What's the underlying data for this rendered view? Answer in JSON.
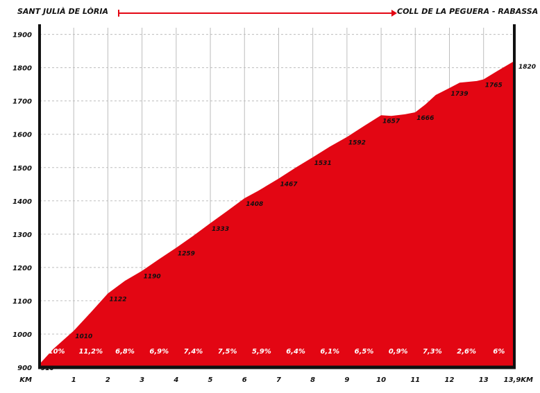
{
  "route": {
    "start": "SANT JULIÀ DE LÒRIA",
    "end": "COLL DE LA PEGUERA - RABASSA"
  },
  "colors": {
    "fill": "#e30613",
    "axis": "#111111",
    "grid": "#bdbdbd",
    "arrow": "#e30613"
  },
  "chart_data": {
    "type": "area",
    "title": "",
    "xlabel": "",
    "ylabel": "",
    "xlim": [
      0,
      13.9
    ],
    "ylim": [
      900,
      1920
    ],
    "x_ticks": [
      0,
      1,
      2,
      3,
      4,
      5,
      6,
      7,
      8,
      9,
      10,
      11,
      12,
      13,
      13.9
    ],
    "x_tick_labels": [
      "KM",
      "1",
      "2",
      "3",
      "4",
      "5",
      "6",
      "7",
      "8",
      "9",
      "10",
      "11",
      "12",
      "13",
      "13,9KM"
    ],
    "y_ticks": [
      900,
      1000,
      1100,
      1200,
      1300,
      1400,
      1500,
      1600,
      1700,
      1800,
      1900
    ],
    "y_tick_labels": [
      "900",
      "1000",
      "1100",
      "1200",
      "1300",
      "1400",
      "1500",
      "1600",
      "1700",
      "1800",
      "1900"
    ],
    "grid": true,
    "profile": {
      "x": [
        0,
        0.4,
        1,
        1.5,
        2,
        2.5,
        3,
        3.5,
        4,
        4.5,
        5,
        5.5,
        6,
        6.4,
        7,
        7.5,
        8,
        8.5,
        9,
        9.5,
        10,
        10.3,
        10.7,
        11,
        11.3,
        11.6,
        12,
        12.3,
        12.8,
        13,
        13.4,
        13.9
      ],
      "y": [
        910,
        955,
        1010,
        1065,
        1122,
        1160,
        1190,
        1225,
        1259,
        1295,
        1333,
        1370,
        1408,
        1430,
        1467,
        1500,
        1531,
        1563,
        1592,
        1625,
        1657,
        1655,
        1660,
        1666,
        1690,
        1718,
        1739,
        1755,
        1760,
        1765,
        1790,
        1820
      ]
    },
    "elevation_labels": [
      {
        "km": 0,
        "value": "910"
      },
      {
        "km": 1,
        "value": "1010"
      },
      {
        "km": 2,
        "value": "1122"
      },
      {
        "km": 3,
        "value": "1190"
      },
      {
        "km": 4,
        "value": "1259"
      },
      {
        "km": 5,
        "value": "1333"
      },
      {
        "km": 6,
        "value": "1408"
      },
      {
        "km": 7,
        "value": "1467"
      },
      {
        "km": 8,
        "value": "1531"
      },
      {
        "km": 9,
        "value": "1592"
      },
      {
        "km": 10,
        "value": "1657"
      },
      {
        "km": 11,
        "value": "1666"
      },
      {
        "km": 12,
        "value": "1739"
      },
      {
        "km": 13,
        "value": "1765"
      },
      {
        "km": 13.9,
        "value": "1820"
      }
    ],
    "gradients": [
      "10%",
      "11,2%",
      "6,8%",
      "6,9%",
      "7,4%",
      "7,5%",
      "5,9%",
      "6,4%",
      "6,1%",
      "6,5%",
      "0,9%",
      "7,3%",
      "2,6%",
      "6%"
    ]
  }
}
